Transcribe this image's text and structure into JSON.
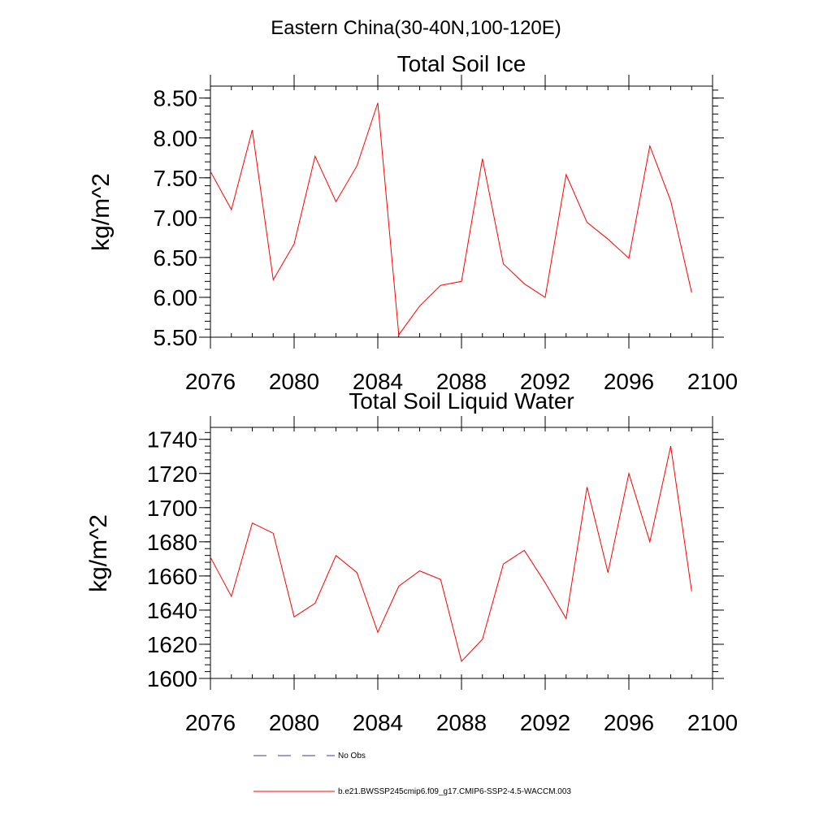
{
  "suptitle": "Eastern China(30-40N,100-120E)",
  "legend": [
    {
      "label": "No Obs",
      "color": "#3a3aa0",
      "dash": true
    },
    {
      "label": "b.e21.BWSSP245cmip6.f09_g17.CMIP6-SSP2-4.5-WACCM.003",
      "color": "#ff0000",
      "dash": false
    }
  ],
  "chart_data": [
    {
      "type": "line",
      "title": "Total Soil Ice",
      "ylabel": "kg/m^2",
      "xlabel": "",
      "xlim": [
        2076,
        2100
      ],
      "ylim": [
        5.5,
        8.65
      ],
      "xticks": [
        2076,
        2080,
        2084,
        2088,
        2092,
        2096,
        2100
      ],
      "xtick_labels": [
        "2076",
        "2080",
        "2084",
        "2088",
        "2092",
        "2096",
        "2100"
      ],
      "yticks": [
        5.5,
        6.0,
        6.5,
        7.0,
        7.5,
        8.0,
        8.5
      ],
      "ytick_labels": [
        "5.50",
        "6.00",
        "6.50",
        "7.00",
        "7.50",
        "8.00",
        "8.50"
      ],
      "series": [
        {
          "color": "#ff0000",
          "x": [
            2076,
            2077,
            2078,
            2079,
            2080,
            2081,
            2082,
            2083,
            2084,
            2085,
            2086,
            2087,
            2088,
            2089,
            2090,
            2091,
            2092,
            2093,
            2094,
            2095,
            2096,
            2097,
            2098,
            2099
          ],
          "values": [
            7.58,
            7.1,
            8.1,
            6.22,
            6.67,
            7.77,
            7.2,
            7.65,
            8.44,
            5.53,
            5.89,
            6.15,
            6.2,
            7.74,
            6.42,
            6.17,
            6.0,
            7.54,
            6.94,
            6.73,
            6.49,
            7.9,
            7.21,
            6.06
          ]
        }
      ]
    },
    {
      "type": "line",
      "title": "Total Soil Liquid Water",
      "ylabel": "kg/m^2",
      "xlabel": "",
      "xlim": [
        2076,
        2100
      ],
      "ylim": [
        1600,
        1747
      ],
      "xticks": [
        2076,
        2080,
        2084,
        2088,
        2092,
        2096,
        2100
      ],
      "xtick_labels": [
        "2076",
        "2080",
        "2084",
        "2088",
        "2092",
        "2096",
        "2100"
      ],
      "yticks": [
        1600,
        1620,
        1640,
        1660,
        1680,
        1700,
        1720,
        1740
      ],
      "ytick_labels": [
        "1600",
        "1620",
        "1640",
        "1660",
        "1680",
        "1700",
        "1720",
        "1740"
      ],
      "series": [
        {
          "color": "#ff0000",
          "x": [
            2076,
            2077,
            2078,
            2079,
            2080,
            2081,
            2082,
            2083,
            2084,
            2085,
            2086,
            2087,
            2088,
            2089,
            2090,
            2091,
            2092,
            2093,
            2094,
            2095,
            2096,
            2097,
            2098,
            2099
          ],
          "values": [
            1671,
            1648,
            1691,
            1685,
            1636,
            1644,
            1672,
            1662,
            1627,
            1654,
            1663,
            1658,
            1610,
            1623,
            1667,
            1675,
            1656,
            1635,
            1712,
            1662,
            1720,
            1680,
            1736,
            1651
          ]
        }
      ]
    }
  ]
}
